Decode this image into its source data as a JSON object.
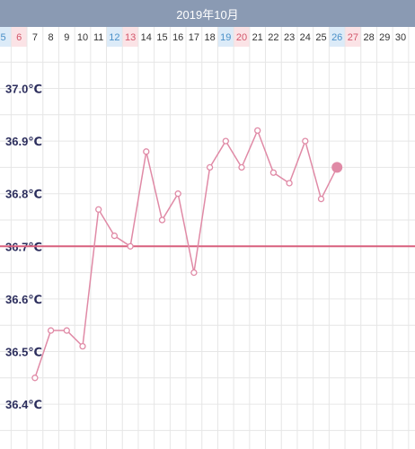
{
  "header": {
    "month_title": "2019年10月"
  },
  "colors": {
    "header_bg": "#8a9ab3",
    "saturday_bg": "#dcebf8",
    "sunday_bg": "#fbe3e6",
    "saturday_text": "#4a90c8",
    "sunday_text": "#d2566a",
    "line": "#e08aa6",
    "baseline": "#d8607e",
    "grid": "#e6e6e6",
    "axis_text": "#2b2d5c"
  },
  "chart_data": {
    "type": "line",
    "title": "",
    "xlabel": "",
    "ylabel": "",
    "x_labels": [
      "5",
      "6",
      "7",
      "8",
      "9",
      "10",
      "11",
      "12",
      "13",
      "14",
      "15",
      "16",
      "17",
      "18",
      "19",
      "20",
      "21",
      "22",
      "23",
      "24",
      "25",
      "26",
      "27",
      "28",
      "29",
      "30"
    ],
    "saturdays": [
      "5",
      "12",
      "19",
      "26"
    ],
    "sundays": [
      "6",
      "13",
      "20",
      "27"
    ],
    "y_tick_labels": [
      "37.0℃",
      "36.9℃",
      "36.8℃",
      "36.7℃",
      "36.6℃",
      "36.5℃",
      "36.4℃"
    ],
    "y_ticks": [
      37.0,
      36.9,
      36.8,
      36.7,
      36.6,
      36.5,
      36.4
    ],
    "ylim": [
      36.4,
      37.0
    ],
    "baseline": 36.7,
    "series": [
      {
        "x": [
          7,
          8,
          9,
          10,
          11,
          12,
          13,
          14,
          15,
          16,
          17,
          18,
          19,
          20,
          21,
          22,
          23,
          24,
          25,
          26
        ],
        "values": [
          36.45,
          36.54,
          36.54,
          36.51,
          36.77,
          36.72,
          36.7,
          36.88,
          36.75,
          36.8,
          36.65,
          36.85,
          36.9,
          36.85,
          36.92,
          36.84,
          36.82,
          36.9,
          36.79,
          36.85
        ]
      }
    ],
    "highlight_last_point": true,
    "grid": true
  }
}
